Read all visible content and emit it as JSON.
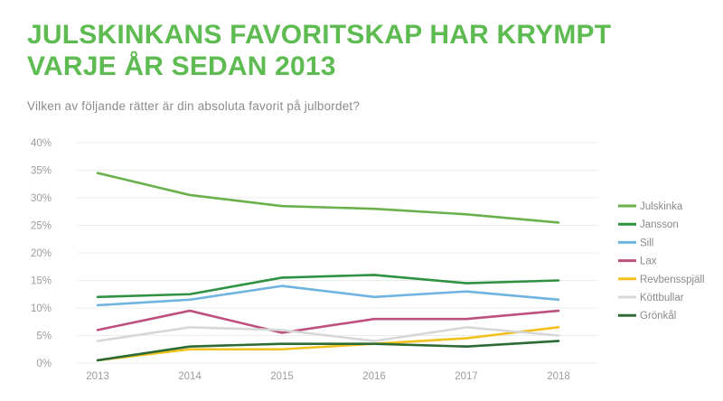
{
  "header": {
    "title": "JULSKINKANS FAVORITSKAP HAR KRYMPT VARJE ÅR SEDAN 2013",
    "subtitle": "Vilken av följande rätter är din absoluta favorit på julbordet?"
  },
  "colors": {
    "title_green": "#5dbb51",
    "axis_text": "#9c9c9c",
    "legend_text": "#8a8a8a",
    "gridline": "#ececec"
  },
  "chart_data": {
    "type": "line",
    "x": [
      "2013",
      "2014",
      "2015",
      "2016",
      "2017",
      "2018"
    ],
    "series": [
      {
        "name": "Julskinka",
        "color": "#6ab04c",
        "values": [
          34.5,
          30.5,
          28.5,
          28.0,
          27.0,
          25.5
        ]
      },
      {
        "name": "Jansson",
        "color": "#2f9242",
        "values": [
          12.0,
          12.5,
          15.5,
          16.0,
          14.5,
          15.0
        ]
      },
      {
        "name": "Sill",
        "color": "#6fb4e0",
        "values": [
          10.5,
          11.5,
          14.0,
          12.0,
          13.0,
          11.5
        ]
      },
      {
        "name": "Lax",
        "color": "#be5080",
        "values": [
          6.0,
          9.5,
          5.5,
          8.0,
          8.0,
          9.5
        ]
      },
      {
        "name": "Revbensspjäll",
        "color": "#f2c11e",
        "values": [
          0.5,
          2.5,
          2.5,
          3.5,
          4.5,
          6.5
        ]
      },
      {
        "name": "Köttbullar",
        "color": "#d7d7d7",
        "values": [
          4.0,
          6.5,
          6.0,
          4.0,
          6.5,
          5.0
        ]
      },
      {
        "name": "Grönkål",
        "color": "#2c6b33",
        "values": [
          0.5,
          3.0,
          3.5,
          3.5,
          3.0,
          4.0
        ]
      }
    ],
    "ylim": [
      0,
      40
    ],
    "ytick_step": 5,
    "yticks": [
      "0%",
      "5%",
      "10%",
      "15%",
      "20%",
      "25%",
      "30%",
      "35%",
      "40%"
    ],
    "grid": "horizontal",
    "legend_position": "right"
  }
}
